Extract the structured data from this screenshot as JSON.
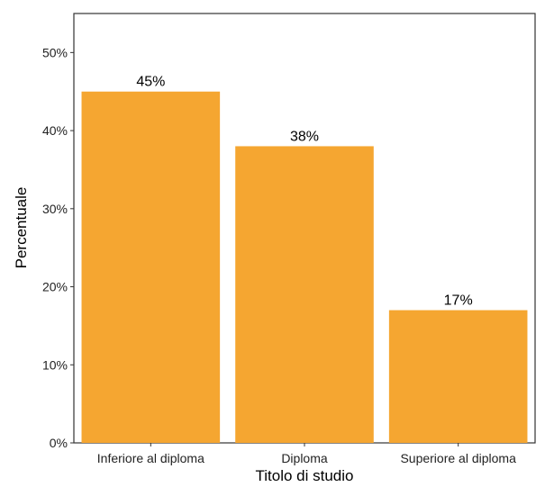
{
  "chart_data": {
    "type": "bar",
    "categories": [
      "Inferiore al diploma",
      "Diploma",
      "Superiore al diploma"
    ],
    "values": [
      45,
      38,
      17
    ],
    "data_labels": [
      "45%",
      "38%",
      "17%"
    ],
    "xlabel": "Titolo di studio",
    "ylabel": "Percentuale",
    "ylim": [
      0,
      55
    ],
    "yticks": [
      0,
      10,
      20,
      30,
      40,
      50
    ],
    "ytick_labels": [
      "0%",
      "10%",
      "20%",
      "30%",
      "40%",
      "50%"
    ],
    "grid": false,
    "legend": "none",
    "bar_color": "#f5a631"
  }
}
